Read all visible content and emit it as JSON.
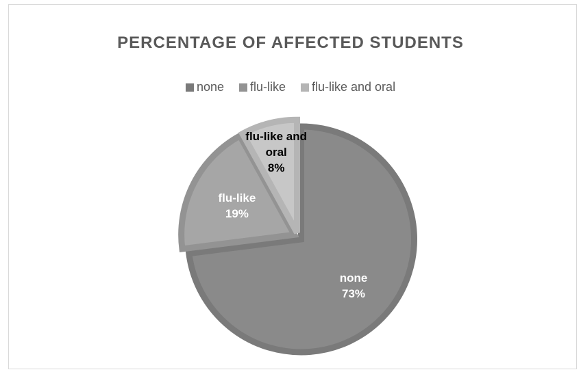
{
  "chart_data": {
    "type": "pie",
    "title": "PERCENTAGE OF AFFECTED STUDENTS",
    "legend_position": "top",
    "categories": [
      "none",
      "flu-like",
      "flu-like and oral"
    ],
    "values": [
      73,
      19,
      8
    ],
    "data_labels": [
      {
        "lines": [
          "none",
          "73%"
        ]
      },
      {
        "lines": [
          "flu-like",
          "19%"
        ]
      },
      {
        "lines": [
          "flu-like and",
          "oral",
          "8%"
        ]
      }
    ],
    "colors": [
      "#8a8a8a",
      "#a6a6a6",
      "#c7c7c7"
    ],
    "edge_colors": [
      "#7a7a7a",
      "#939393",
      "#b5b5b5"
    ],
    "label_colors": [
      "#ffffff",
      "#ffffff",
      "#000000"
    ],
    "exploded": true
  }
}
